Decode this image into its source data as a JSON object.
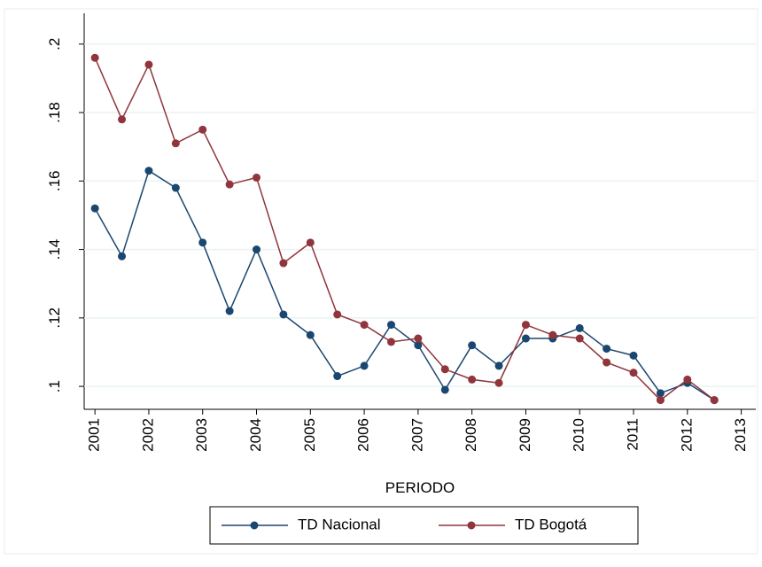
{
  "chart_data": {
    "type": "line",
    "x_label": "PERIODO",
    "x": [
      2001,
      2001.5,
      2002,
      2002.5,
      2003,
      2003.5,
      2004,
      2004.5,
      2005,
      2005.5,
      2006,
      2006.5,
      2007,
      2007.5,
      2008,
      2008.5,
      2009,
      2009.5,
      2010,
      2010.5,
      2011,
      2011.5,
      2012,
      2012.5
    ],
    "series": [
      {
        "name": "TD Nacional",
        "color": "#1a476f",
        "values": [
          0.152,
          0.138,
          0.163,
          0.158,
          0.142,
          0.122,
          0.14,
          0.121,
          0.115,
          0.103,
          0.106,
          0.118,
          0.112,
          0.099,
          0.112,
          0.106,
          0.114,
          0.114,
          0.117,
          0.111,
          0.109,
          0.098,
          0.101,
          0.096
        ]
      },
      {
        "name": "TD Bogotá",
        "color": "#90353b",
        "values": [
          0.196,
          0.178,
          0.194,
          0.171,
          0.175,
          0.159,
          0.161,
          0.136,
          0.142,
          0.121,
          0.118,
          0.113,
          0.114,
          0.105,
          0.102,
          0.101,
          0.118,
          0.115,
          0.114,
          0.107,
          0.104,
          0.096,
          0.102,
          0.096
        ]
      }
    ],
    "xlim": [
      2000.8,
      2013.27
    ],
    "xticks": [
      2001,
      2002,
      2003,
      2004,
      2005,
      2006,
      2007,
      2008,
      2009,
      2010,
      2011,
      2012,
      2013
    ],
    "ylim": [
      0.0933,
      0.209
    ],
    "yticks": [
      {
        "value": 0.1,
        "label": ".1"
      },
      {
        "value": 0.12,
        "label": ".12"
      },
      {
        "value": 0.14,
        "label": ".14"
      },
      {
        "value": 0.16,
        "label": ".16"
      },
      {
        "value": 0.18,
        "label": ".18"
      },
      {
        "value": 0.2,
        "label": ".2"
      }
    ],
    "grid": true
  }
}
